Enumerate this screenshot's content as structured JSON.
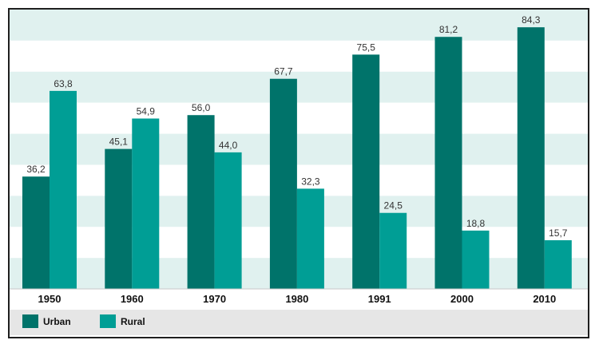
{
  "chart_data": {
    "type": "bar",
    "categories": [
      "1950",
      "1960",
      "1970",
      "1980",
      "1991",
      "2000",
      "2010"
    ],
    "series": [
      {
        "name": "Urban",
        "color": "#00736a",
        "values": [
          36.2,
          45.1,
          56.0,
          67.7,
          75.5,
          81.2,
          84.3
        ],
        "labels": [
          "36,2",
          "45,1",
          "56,0",
          "67,7",
          "75,5",
          "81,2",
          "84,3"
        ]
      },
      {
        "name": "Rural",
        "color": "#009e95",
        "values": [
          63.8,
          54.9,
          44.0,
          32.3,
          24.5,
          18.8,
          15.7
        ],
        "labels": [
          "63,8",
          "54,9",
          "44,0",
          "32,3",
          "24,5",
          "18,8",
          "15,7"
        ]
      }
    ],
    "ylim": [
      0,
      90
    ],
    "grid": true,
    "legend": "bottom-left",
    "colors": {
      "band_light": "#e0f1ef",
      "band_white": "#ffffff",
      "legend_bg": "#e6e6e6"
    }
  }
}
